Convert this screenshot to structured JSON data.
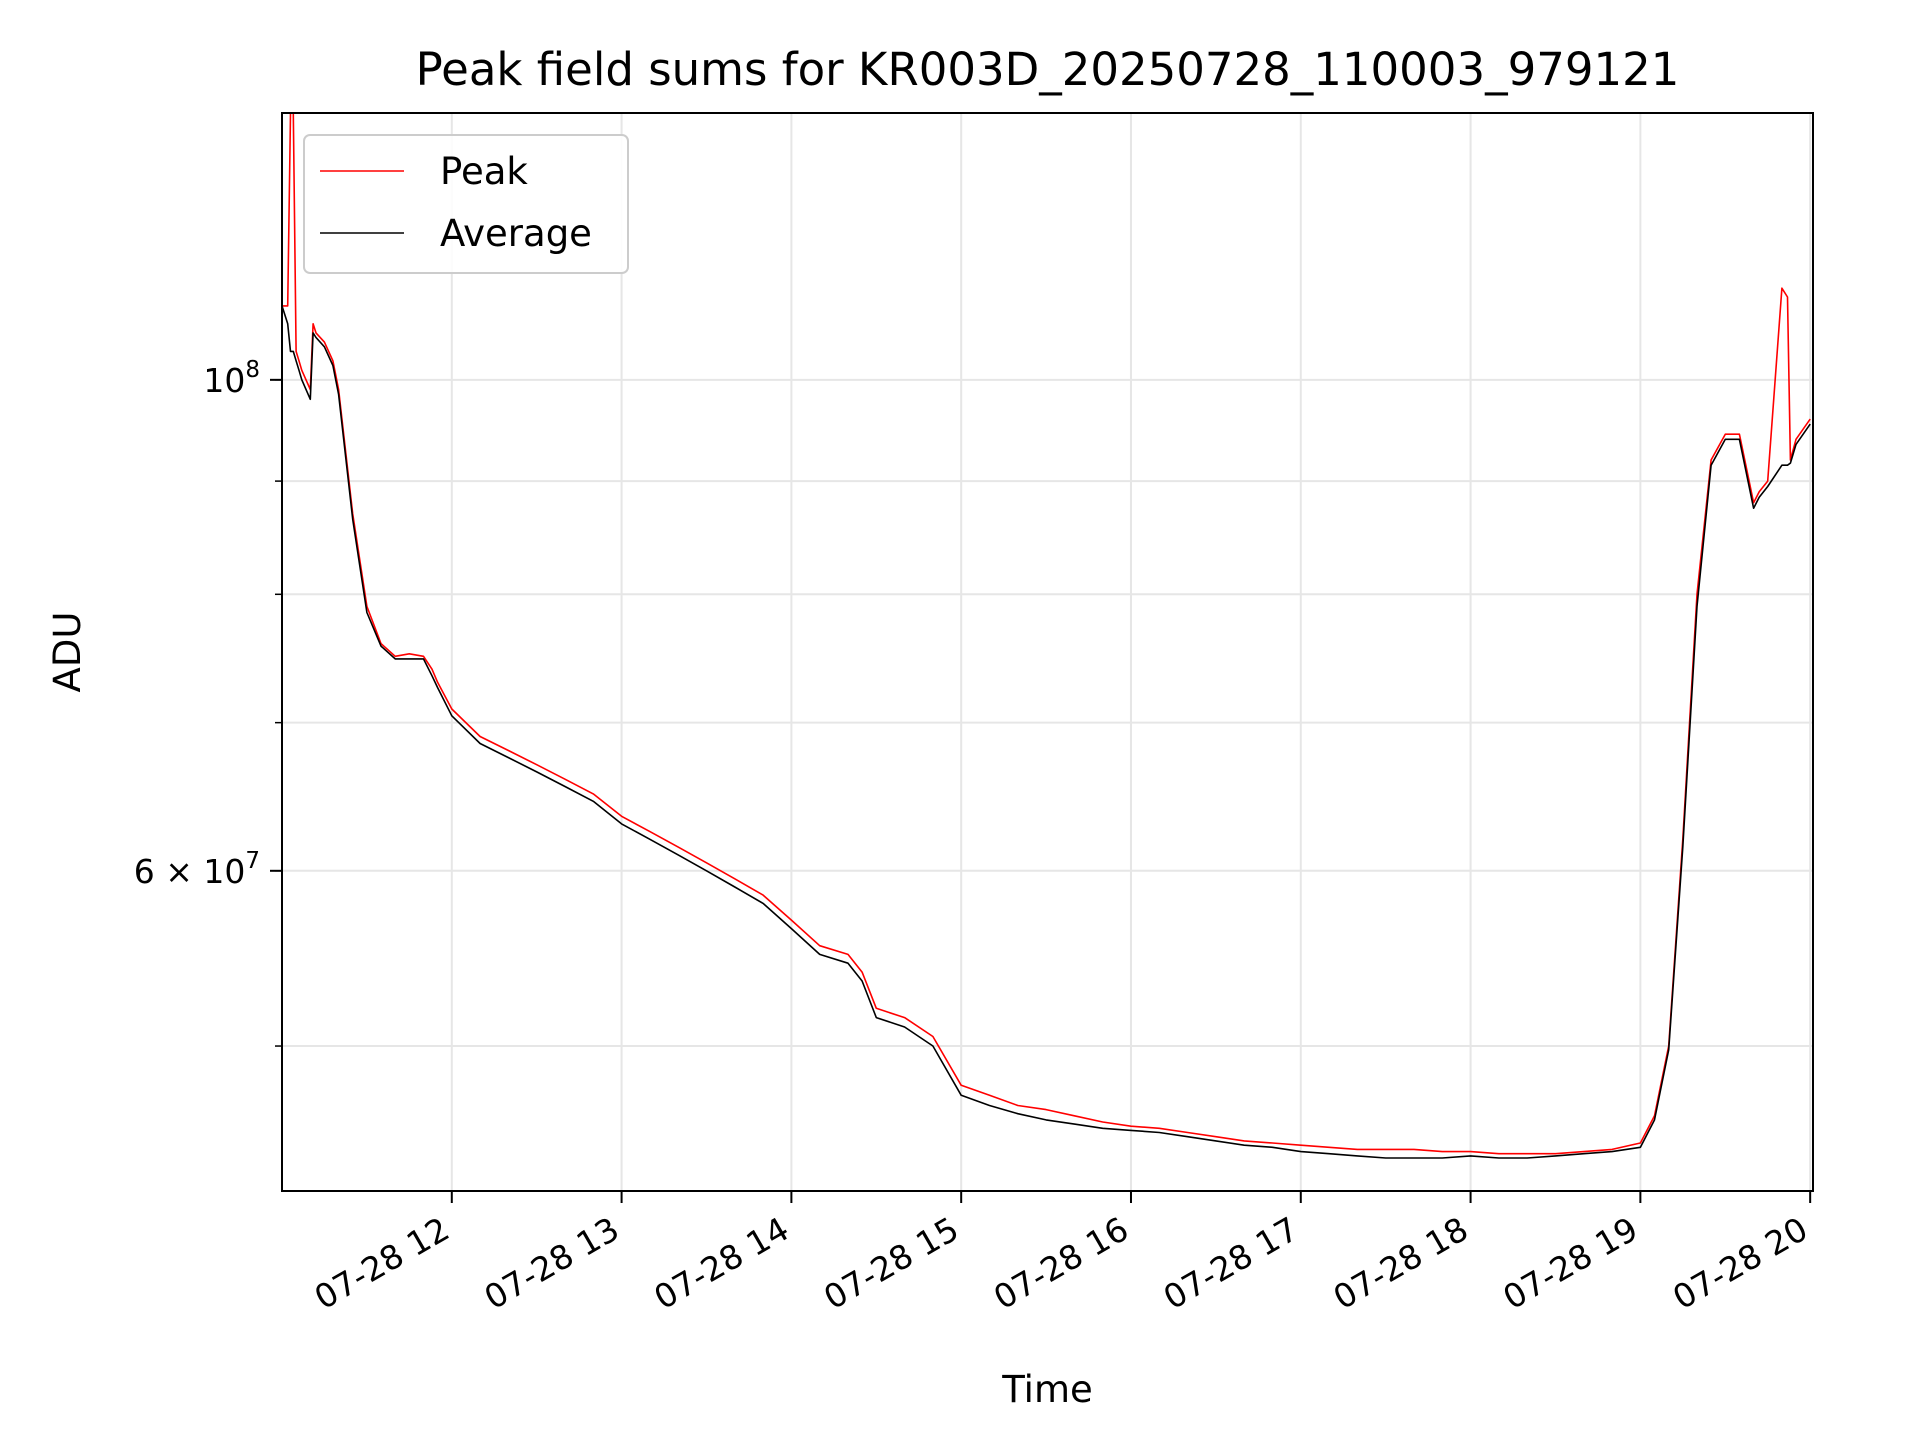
{
  "chart_data": {
    "type": "line",
    "title": "Peak field sums for KR003D_20250728_110003_979121",
    "xlabel": "Time",
    "ylabel": "ADU",
    "x_scale": "time",
    "y_scale": "log",
    "xlim": [
      "2025-07-28 11:00",
      "2025-07-28 20:01"
    ],
    "ylim": [
      43000000,
      132000000
    ],
    "x_ticks": [
      "07-28 12",
      "07-28 13",
      "07-28 14",
      "07-28 15",
      "07-28 16",
      "07-28 17",
      "07-28 18",
      "07-28 19",
      "07-28 20"
    ],
    "y_ticks": [
      "10^8",
      "6×10^7"
    ],
    "grid": true,
    "legend_position": "upper left",
    "series": [
      {
        "name": "Peak",
        "color": "#ff0000",
        "x": [
          "11:00",
          "11:02",
          "11:03",
          "11:04",
          "11:05",
          "11:06",
          "11:07",
          "11:10",
          "11:11",
          "11:12",
          "11:15",
          "11:18",
          "11:20",
          "11:25",
          "11:30",
          "11:35",
          "11:40",
          "11:45",
          "11:50",
          "11:53",
          "11:55",
          "12:00",
          "12:10",
          "12:20",
          "12:30",
          "12:40",
          "12:50",
          "13:00",
          "13:10",
          "13:20",
          "13:30",
          "13:40",
          "13:50",
          "14:00",
          "14:10",
          "14:20",
          "14:25",
          "14:30",
          "14:40",
          "14:50",
          "15:00",
          "15:10",
          "15:20",
          "15:30",
          "15:40",
          "15:50",
          "16:00",
          "16:10",
          "16:20",
          "16:30",
          "16:40",
          "16:50",
          "17:00",
          "17:10",
          "17:20",
          "17:30",
          "17:40",
          "17:50",
          "18:00",
          "18:10",
          "18:20",
          "18:30",
          "18:40",
          "18:50",
          "19:00",
          "19:05",
          "19:10",
          "19:15",
          "19:20",
          "19:25",
          "19:30",
          "19:35",
          "19:40",
          "19:42",
          "19:45",
          "19:50",
          "19:52",
          "19:53",
          "19:55",
          "20:00"
        ],
        "y": [
          108000000,
          108000000,
          132000000,
          132000000,
          103000000,
          102000000,
          101000000,
          99000000,
          106000000,
          105000000,
          104000000,
          102000000,
          99000000,
          87000000,
          79000000,
          76000000,
          75000000,
          75200000,
          75000000,
          74000000,
          73000000,
          71000000,
          69000000,
          68000000,
          67000000,
          66000000,
          65000000,
          63500000,
          62500000,
          61500000,
          60500000,
          59500000,
          58500000,
          57000000,
          55500000,
          55000000,
          54000000,
          52000000,
          51500000,
          50500000,
          48000000,
          47500000,
          47000000,
          46800000,
          46500000,
          46200000,
          46000000,
          45900000,
          45700000,
          45500000,
          45300000,
          45200000,
          45100000,
          45000000,
          44900000,
          44900000,
          44900000,
          44800000,
          44800000,
          44700000,
          44700000,
          44700000,
          44800000,
          44900000,
          45200000,
          46500000,
          50000000,
          62000000,
          80000000,
          92000000,
          94500000,
          94500000,
          88000000,
          89000000,
          90000000,
          110000000,
          109000000,
          92000000,
          94000000,
          96000000
        ]
      },
      {
        "name": "Average",
        "color": "#000000",
        "x": [
          "11:00",
          "11:02",
          "11:03",
          "11:04",
          "11:05",
          "11:06",
          "11:07",
          "11:10",
          "11:11",
          "11:12",
          "11:15",
          "11:18",
          "11:20",
          "11:25",
          "11:30",
          "11:35",
          "11:40",
          "11:45",
          "11:50",
          "11:53",
          "11:55",
          "12:00",
          "12:10",
          "12:20",
          "12:30",
          "12:40",
          "12:50",
          "13:00",
          "13:10",
          "13:20",
          "13:30",
          "13:40",
          "13:50",
          "14:00",
          "14:10",
          "14:20",
          "14:25",
          "14:30",
          "14:40",
          "14:50",
          "15:00",
          "15:10",
          "15:20",
          "15:30",
          "15:40",
          "15:50",
          "16:00",
          "16:10",
          "16:20",
          "16:30",
          "16:40",
          "16:50",
          "17:00",
          "17:10",
          "17:20",
          "17:30",
          "17:40",
          "17:50",
          "18:00",
          "18:10",
          "18:20",
          "18:30",
          "18:40",
          "18:50",
          "19:00",
          "19:05",
          "19:10",
          "19:15",
          "19:20",
          "19:25",
          "19:30",
          "19:35",
          "19:40",
          "19:42",
          "19:45",
          "19:50",
          "19:52",
          "19:53",
          "19:55",
          "20:00"
        ],
        "y": [
          108000000,
          106000000,
          103000000,
          103000000,
          102000000,
          101000000,
          100000000,
          98000000,
          105000000,
          104500000,
          103500000,
          101500000,
          98500000,
          86500000,
          78500000,
          75800000,
          74800000,
          74800000,
          74800000,
          73500000,
          72600000,
          70500000,
          68500000,
          67500000,
          66500000,
          65500000,
          64500000,
          63000000,
          62000000,
          61000000,
          60000000,
          59000000,
          58000000,
          56500000,
          55000000,
          54500000,
          53500000,
          51500000,
          51000000,
          50000000,
          47500000,
          47000000,
          46600000,
          46300000,
          46100000,
          45900000,
          45800000,
          45700000,
          45500000,
          45300000,
          45100000,
          45000000,
          44800000,
          44700000,
          44600000,
          44500000,
          44500000,
          44500000,
          44600000,
          44500000,
          44500000,
          44600000,
          44700000,
          44800000,
          45000000,
          46300000,
          49800000,
          61500000,
          79000000,
          91500000,
          94000000,
          94000000,
          87500000,
          88500000,
          89500000,
          91500000,
          91500000,
          91700000,
          93500000,
          95500000
        ]
      }
    ]
  }
}
